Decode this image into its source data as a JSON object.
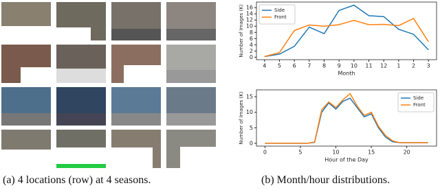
{
  "caption_a": "(a) 4 locations (row) at 4 seasons.",
  "caption_b": "(b) Month/hour distributions.",
  "chart_data": [
    {
      "type": "line",
      "x_label": "Month",
      "y_label": "Number of Images (K)",
      "categories": [
        "4",
        "5",
        "6",
        "7",
        "8",
        "9",
        "10",
        "11",
        "12",
        "1",
        "2",
        "3"
      ],
      "series": [
        {
          "name": "Side",
          "color": "#1f77b4",
          "values": [
            0.2,
            1,
            3.5,
            9.7,
            7.6,
            15.1,
            16.8,
            13.4,
            13.1,
            9,
            7.4,
            2.4
          ]
        },
        {
          "name": "Front",
          "color": "#ff7f0e",
          "values": [
            0.2,
            1.5,
            8.6,
            10.4,
            10,
            10.5,
            11.9,
            10.5,
            10.6,
            10.2,
            12.5,
            5
          ]
        }
      ],
      "ylim": [
        -0.8,
        17.8
      ],
      "yticks": [
        0,
        2,
        4,
        6,
        8,
        10,
        12,
        14,
        16
      ],
      "legend": "upper left"
    },
    {
      "type": "line",
      "x_label": "Hour of the Day",
      "y_label": "Number of Images (K)",
      "x": [
        0,
        1,
        2,
        3,
        4,
        5,
        6,
        7,
        8,
        9,
        10,
        11,
        12,
        13,
        14,
        15,
        16,
        17,
        18,
        19,
        20,
        21,
        22,
        23
      ],
      "series": [
        {
          "name": "Side",
          "color": "#1f77b4",
          "values": [
            0,
            0,
            0,
            0,
            0,
            0,
            0,
            0.3,
            10,
            13,
            11,
            13.5,
            14.5,
            11.5,
            8.5,
            9.5,
            5,
            2,
            0.5,
            0.2,
            0.2,
            0.2,
            0.2,
            0.2
          ]
        },
        {
          "name": "Front",
          "color": "#ff7f0e",
          "values": [
            0,
            0,
            0,
            0,
            0,
            0,
            0,
            0.4,
            10.8,
            13.3,
            11.5,
            14,
            16,
            12,
            9,
            10,
            5.5,
            2.5,
            0.8,
            0.2,
            0.2,
            0.2,
            0.2,
            0.2
          ]
        }
      ],
      "xlim": [
        -1.2,
        24.2
      ],
      "xticks": [
        0,
        5,
        10,
        15,
        20
      ],
      "ylim": [
        -0.9,
        17.2
      ],
      "yticks": [
        0,
        5,
        10,
        15
      ],
      "legend": "upper right"
    }
  ]
}
